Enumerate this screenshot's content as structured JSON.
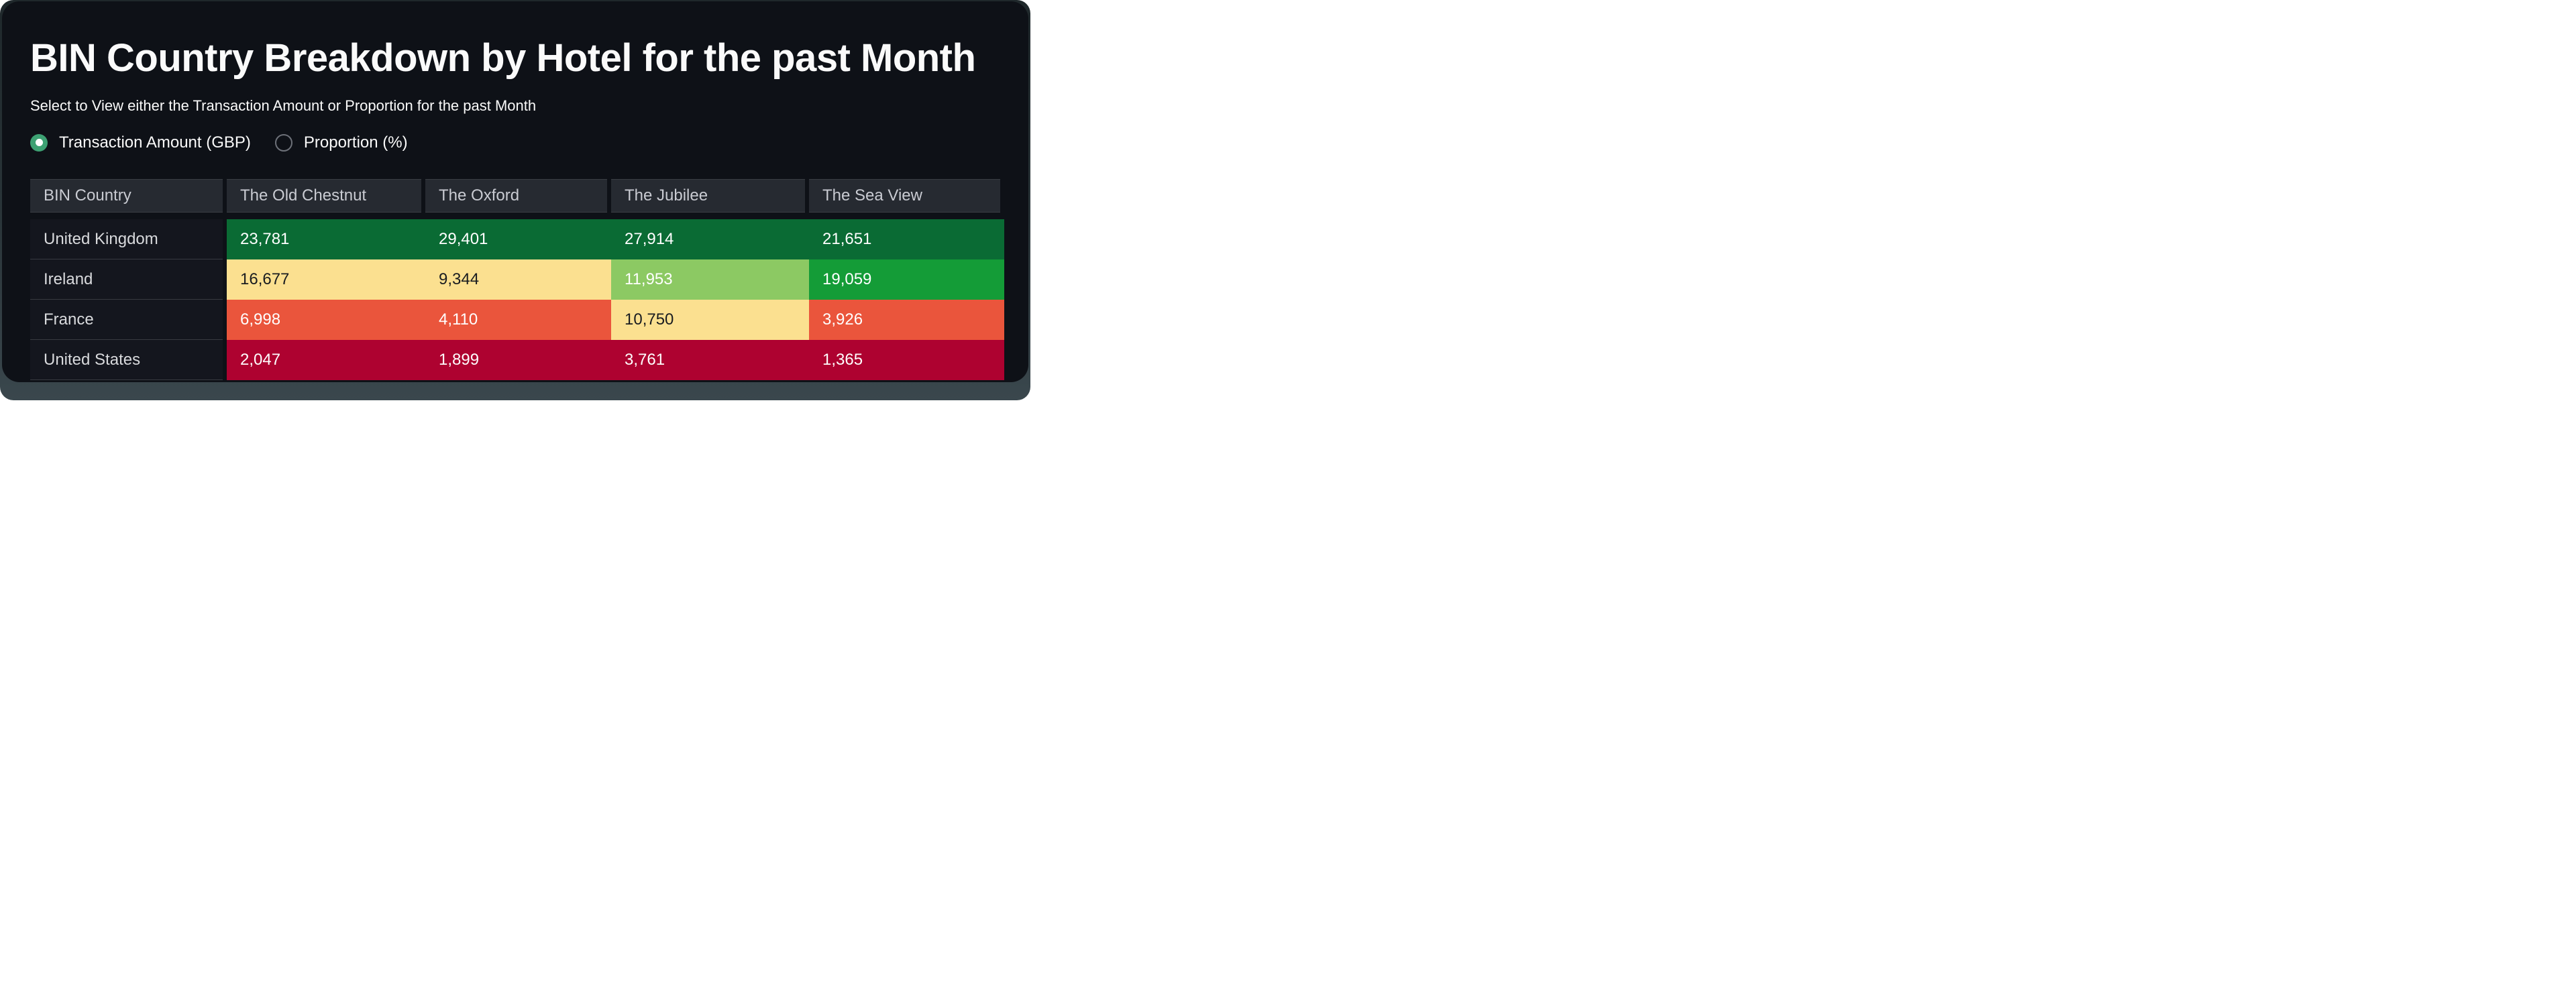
{
  "page": {
    "title": "BIN Country Breakdown by Hotel for the past Month",
    "subtitle": "Select to View either the Transaction Amount or Proportion for the past Month"
  },
  "radio": {
    "accent_color": "#3da173",
    "selected_index": 0,
    "options": [
      {
        "label": "Transaction Amount (GBP)",
        "selected": true
      },
      {
        "label": "Proportion (%)",
        "selected": false
      }
    ]
  },
  "table": {
    "columns": [
      "BIN Country",
      "The Old Chestnut",
      "The Oxford",
      "The Jubilee",
      "The Sea View"
    ],
    "rows": [
      {
        "country": "United Kingdom",
        "values": [
          "23,781",
          "29,401",
          "27,914",
          "21,651"
        ],
        "cell_bg": [
          "#0a6b34",
          "#0a6b34",
          "#0a6b34",
          "#0a6b34"
        ],
        "cell_fg": [
          "#ffffff",
          "#ffffff",
          "#ffffff",
          "#ffffff"
        ]
      },
      {
        "country": "Ireland",
        "values": [
          "16,677",
          "9,344",
          "11,953",
          "19,059"
        ],
        "cell_bg": [
          "#fbe090",
          "#fbe090",
          "#8cc963",
          "#149c37"
        ],
        "cell_fg": [
          "#191c20",
          "#191c20",
          "#ffffff",
          "#ffffff"
        ]
      },
      {
        "country": "France",
        "values": [
          "6,998",
          "4,110",
          "10,750",
          "3,926"
        ],
        "cell_bg": [
          "#ea553c",
          "#ea553c",
          "#fbe090",
          "#ea553c"
        ],
        "cell_fg": [
          "#ffffff",
          "#ffffff",
          "#191c20",
          "#ffffff"
        ]
      },
      {
        "country": "United States",
        "values": [
          "2,047",
          "1,899",
          "3,761",
          "1,365"
        ],
        "cell_bg": [
          "#ae0230",
          "#ae0230",
          "#ae0230",
          "#ae0230"
        ],
        "cell_fg": [
          "#ffffff",
          "#ffffff",
          "#ffffff",
          "#ffffff"
        ]
      }
    ]
  },
  "chart_data": {
    "type": "heatmap",
    "title": "BIN Country Breakdown by Hotel for the past Month",
    "metric": "Transaction Amount (GBP)",
    "x_categories": [
      "The Old Chestnut",
      "The Oxford",
      "The Jubilee",
      "The Sea View"
    ],
    "y_categories": [
      "United Kingdom",
      "Ireland",
      "France",
      "United States"
    ],
    "values": [
      [
        23781,
        29401,
        27914,
        21651
      ],
      [
        16677,
        9344,
        11953,
        19059
      ],
      [
        6998,
        4110,
        10750,
        3926
      ],
      [
        2047,
        1899,
        3761,
        1365
      ]
    ],
    "colormap": "RdYlGn",
    "legend_position": "none"
  }
}
